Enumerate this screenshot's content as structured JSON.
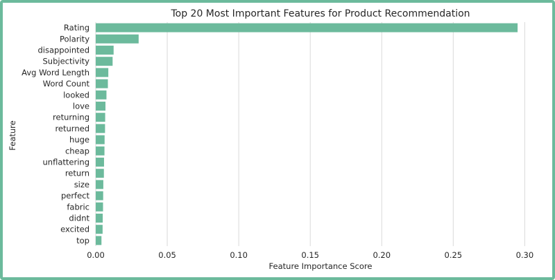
{
  "chart_data": {
    "type": "bar",
    "orientation": "horizontal",
    "title": "Top 20 Most Important Features for Product Recommendation",
    "xlabel": "Feature Importance Score",
    "ylabel": "Feature",
    "xlim": [
      0,
      0.31
    ],
    "xticks": [
      "0.00",
      "0.05",
      "0.10",
      "0.15",
      "0.20",
      "0.25",
      "0.30"
    ],
    "grid": "vertical",
    "bar_color": "#6cba9c",
    "categories": [
      "Rating",
      "Polarity",
      "disappointed",
      "Subjectivity",
      "Avg Word Length",
      "Word Count",
      "looked",
      "love",
      "returning",
      "returned",
      "huge",
      "cheap",
      "unflattering",
      "return",
      "size",
      "perfect",
      "fabric",
      "didnt",
      "excited",
      "top"
    ],
    "values": [
      0.295,
      0.03,
      0.0125,
      0.0118,
      0.0088,
      0.0085,
      0.0075,
      0.0068,
      0.0066,
      0.0065,
      0.0062,
      0.0061,
      0.0058,
      0.0057,
      0.0053,
      0.0052,
      0.0051,
      0.0049,
      0.0048,
      0.004
    ]
  }
}
